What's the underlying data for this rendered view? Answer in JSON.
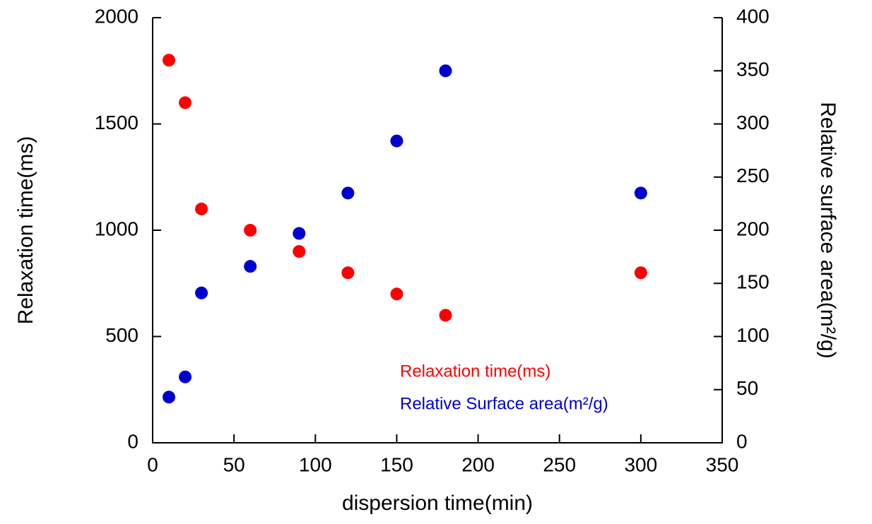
{
  "chart_data": {
    "type": "scatter",
    "x_label": "dispersion time(min)",
    "y_label": "Relaxation time(ms)",
    "y2_label": "Relative surface area(m²/g)",
    "xlim": [
      0,
      350
    ],
    "xticks": [
      0,
      50,
      100,
      150,
      200,
      250,
      300,
      350
    ],
    "ylim": [
      0,
      2000
    ],
    "yticks": [
      0,
      500,
      1000,
      1500,
      2000
    ],
    "y2lim": [
      0,
      400
    ],
    "y2ticks": [
      0,
      50,
      100,
      150,
      200,
      250,
      300,
      350,
      400
    ],
    "series": [
      {
        "name": "Relaxation time(ms)",
        "color": "#ff0000",
        "x": [
          10,
          20,
          30,
          60,
          90,
          120,
          150,
          180,
          300
        ],
        "values": [
          1800,
          1600,
          1100,
          1000,
          900,
          800,
          700,
          600,
          800
        ]
      },
      {
        "name": "Relative Surface area(m²/g)",
        "color": "#0000cc",
        "axis": "y2",
        "x": [
          10,
          20,
          30,
          60,
          90,
          120,
          150,
          180,
          300
        ],
        "values": [
          43,
          62,
          141,
          166,
          197,
          235,
          284,
          350,
          235
        ]
      }
    ]
  }
}
